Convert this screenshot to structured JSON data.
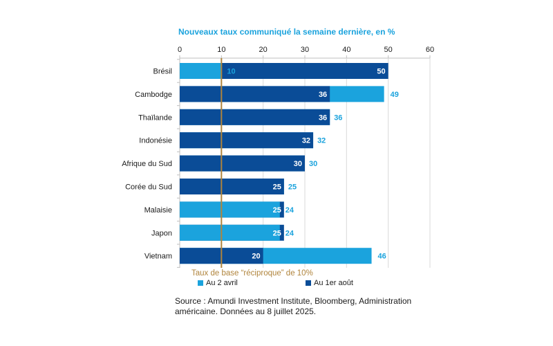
{
  "chart_data": {
    "type": "bar",
    "orientation": "horizontal",
    "title": "Nouveaux taux communiqué la semaine dernière,  en  %",
    "categories": [
      "Brésil",
      "Cambodge",
      "Thaïlande",
      "Indonésie",
      "Afrique du Sud",
      "Corée du Sud",
      "Malaisie",
      "Japon",
      "Vietnam"
    ],
    "series": [
      {
        "name": "Au 2 avril",
        "color": "#1ba3dd",
        "values": [
          10,
          49,
          36,
          32,
          30,
          25,
          24,
          24,
          46
        ],
        "label_color": "#1ba3dd"
      },
      {
        "name": "Au 1er août",
        "color": "#0a4c97",
        "values": [
          50,
          36,
          36,
          32,
          30,
          25,
          25,
          25,
          20
        ],
        "label_color": "#ffffff"
      }
    ],
    "xlim": [
      0,
      60
    ],
    "xticks": [
      0,
      10,
      20,
      30,
      40,
      50,
      60
    ],
    "axis_position": "top",
    "grid": true,
    "reference_line": {
      "value": 10,
      "label": "Taux de base “réciproque” de 10%",
      "color": "#b0843c"
    },
    "legend_position": "bottom"
  },
  "source": {
    "line1": "Source :  Amundi Investment Institute, Bloomberg, Administration",
    "line2": "américaine. Données au 8 juillet 2025."
  },
  "colors": {
    "title": "#1ba3dd",
    "axis_text": "#1a1a1a",
    "grid": "#d9d9d9"
  }
}
